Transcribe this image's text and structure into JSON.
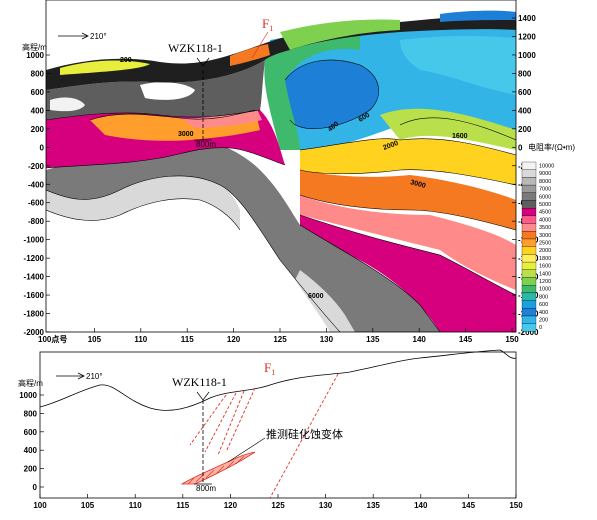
{
  "top_section": {
    "y_axis_label": "高程/m",
    "azimuth": "210°",
    "borehole": "WZK118-1",
    "fault": "F",
    "fault_sub": "1",
    "depth_mark": "800m",
    "y_ticks_left": [
      "1000",
      "800",
      "600",
      "400",
      "200",
      "0",
      "-200",
      "-400",
      "-600",
      "-800",
      "-1000",
      "-1200",
      "-1400",
      "-1600",
      "-1800",
      "-2000"
    ],
    "y_ticks_right": [
      "1400",
      "1200",
      "1000",
      "800",
      "600",
      "400",
      "200",
      "0",
      "-200",
      "-400",
      "-600",
      "-800",
      "-1000",
      "-1200",
      "-1400",
      "-1600",
      "-1800",
      "-2000"
    ],
    "x_ticks": [
      "105",
      "110",
      "115",
      "120",
      "125",
      "130",
      "135",
      "140",
      "145",
      "150"
    ],
    "x_first_label": "100点号",
    "contour_labels": [
      "3000",
      "400",
      "600",
      "1600",
      "2000",
      "3000",
      "6000",
      "200"
    ],
    "legend": {
      "title": "电阻率/(Ω•m)",
      "values": [
        "10000",
        "9000",
        "8000",
        "7000",
        "6000",
        "5000",
        "4500",
        "4000",
        "3500",
        "3000",
        "2500",
        "2000",
        "1800",
        "1600",
        "1400",
        "1200",
        "1000",
        "800",
        "600",
        "400",
        "200",
        "0"
      ],
      "colors": [
        "#f2f2f2",
        "#d9d9d9",
        "#b8b8b8",
        "#9a9a9a",
        "#7a7a7a",
        "#5e5e5e",
        "#d6007e",
        "#ff5a8c",
        "#ff8a8a",
        "#f47920",
        "#ff9e2c",
        "#ffd21f",
        "#ffef5a",
        "#e8ee3c",
        "#b9e04a",
        "#7fd04f",
        "#3fb96b",
        "#2ab8a8",
        "#1aa0e0",
        "#1e7fd6",
        "#32b4e6",
        "#46c8ea"
      ]
    }
  },
  "bottom_section": {
    "y_axis_label": "高程/m",
    "azimuth": "210°",
    "borehole": "WZK118-1",
    "fault": "F",
    "fault_sub": "1",
    "depth_mark": "800m",
    "annotation": "推测硅化蚀变体",
    "y_ticks": [
      "1000",
      "800",
      "600",
      "400",
      "200",
      "0"
    ],
    "x_ticks": [
      "100",
      "105",
      "110",
      "115",
      "120",
      "125",
      "130",
      "135",
      "140",
      "145",
      "150"
    ]
  }
}
